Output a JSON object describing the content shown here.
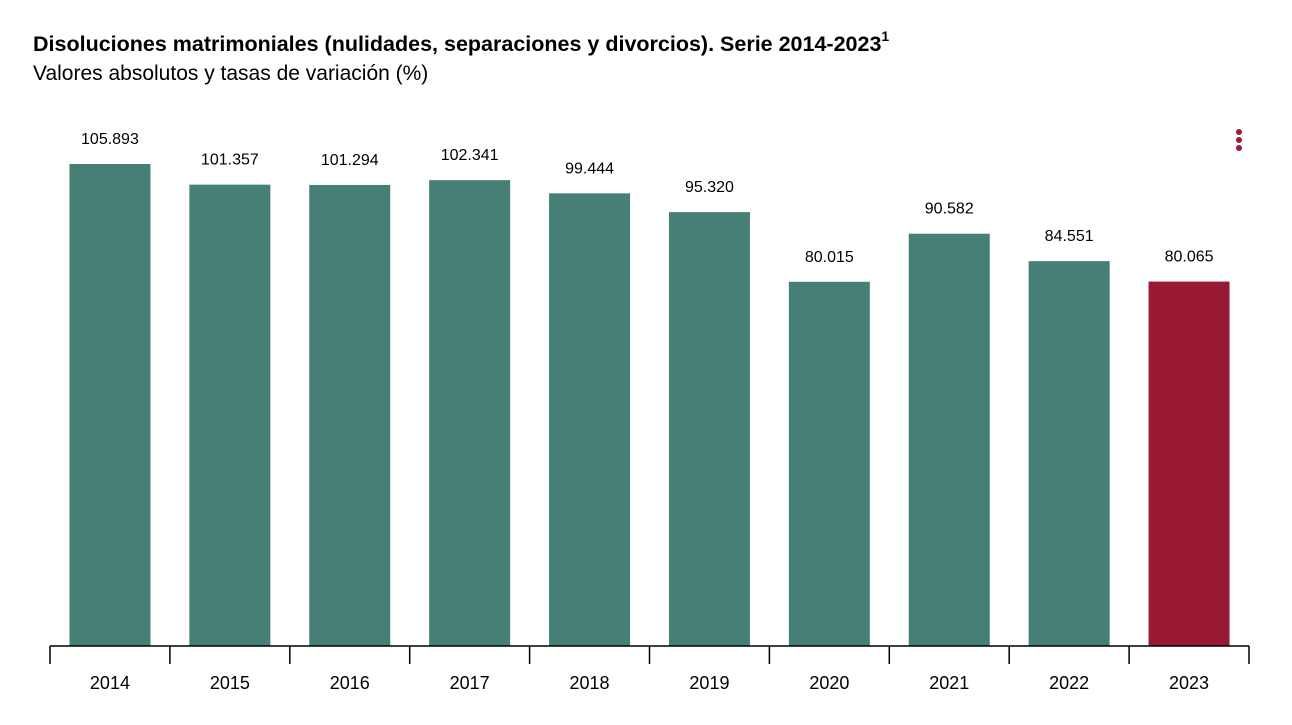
{
  "title": "Disoluciones matrimoniales (nulidades, separaciones y divorcios). Serie 2014-2023",
  "title_superscript": "1",
  "subtitle": "Valores absolutos y tasas de variación (%)",
  "menu_icon": "kebab-menu-icon",
  "colors": {
    "bar": "#467f76",
    "highlight": "#9b1a33",
    "axis": "#000000"
  },
  "chart_data": {
    "type": "bar",
    "title": "Disoluciones matrimoniales (nulidades, separaciones y divorcios). Serie 2014-2023",
    "subtitle": "Valores absolutos y tasas de variación (%)",
    "categories": [
      "2014",
      "2015",
      "2016",
      "2017",
      "2018",
      "2019",
      "2020",
      "2021",
      "2022",
      "2023"
    ],
    "values": [
      105893,
      101357,
      101294,
      102341,
      99444,
      95320,
      80015,
      90582,
      84551,
      80065
    ],
    "value_labels": [
      "105.893",
      "101.357",
      "101.294",
      "102.341",
      "99.444",
      "95.320",
      "80.015",
      "90.582",
      "84.551",
      "80.065"
    ],
    "highlight_category": "2023",
    "xlabel": "",
    "ylabel": "",
    "ylim": [
      0,
      105893
    ],
    "grid": false,
    "legend": "none"
  }
}
